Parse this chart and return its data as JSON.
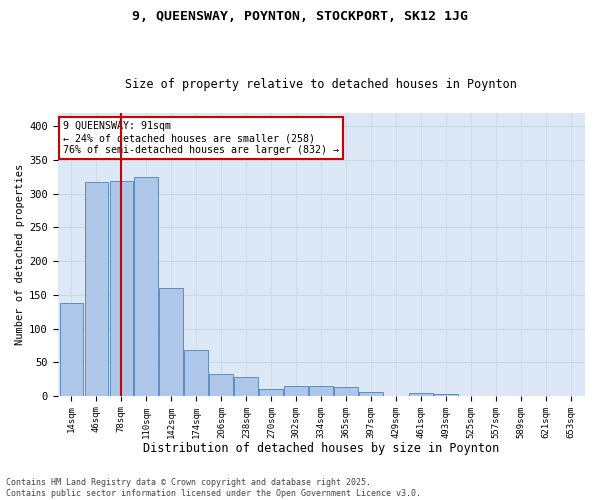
{
  "title1": "9, QUEENSWAY, POYNTON, STOCKPORT, SK12 1JG",
  "title2": "Size of property relative to detached houses in Poynton",
  "xlabel": "Distribution of detached houses by size in Poynton",
  "ylabel": "Number of detached properties",
  "categories": [
    "14sqm",
    "46sqm",
    "78sqm",
    "110sqm",
    "142sqm",
    "174sqm",
    "206sqm",
    "238sqm",
    "270sqm",
    "302sqm",
    "334sqm",
    "365sqm",
    "397sqm",
    "429sqm",
    "461sqm",
    "493sqm",
    "525sqm",
    "557sqm",
    "589sqm",
    "621sqm",
    "653sqm"
  ],
  "values": [
    138,
    318,
    319,
    325,
    160,
    68,
    33,
    28,
    10,
    15,
    15,
    13,
    5,
    0,
    4,
    3,
    0,
    0,
    0,
    0,
    0
  ],
  "bar_color": "#aec6e8",
  "bar_edge_color": "#5a8fc2",
  "grid_color": "#c8d8e8",
  "plot_bg_color": "#dce8f5",
  "background_color": "#ffffff",
  "red_line_x": 2.0,
  "annotation_text": "9 QUEENSWAY: 91sqm\n← 24% of detached houses are smaller (258)\n76% of semi-detached houses are larger (832) →",
  "annotation_box_color": "#ffffff",
  "annotation_box_edge_color": "#cc0000",
  "footer1": "Contains HM Land Registry data © Crown copyright and database right 2025.",
  "footer2": "Contains public sector information licensed under the Open Government Licence v3.0.",
  "ylim": [
    0,
    420
  ],
  "yticks": [
    0,
    50,
    100,
    150,
    200,
    250,
    300,
    350,
    400
  ]
}
